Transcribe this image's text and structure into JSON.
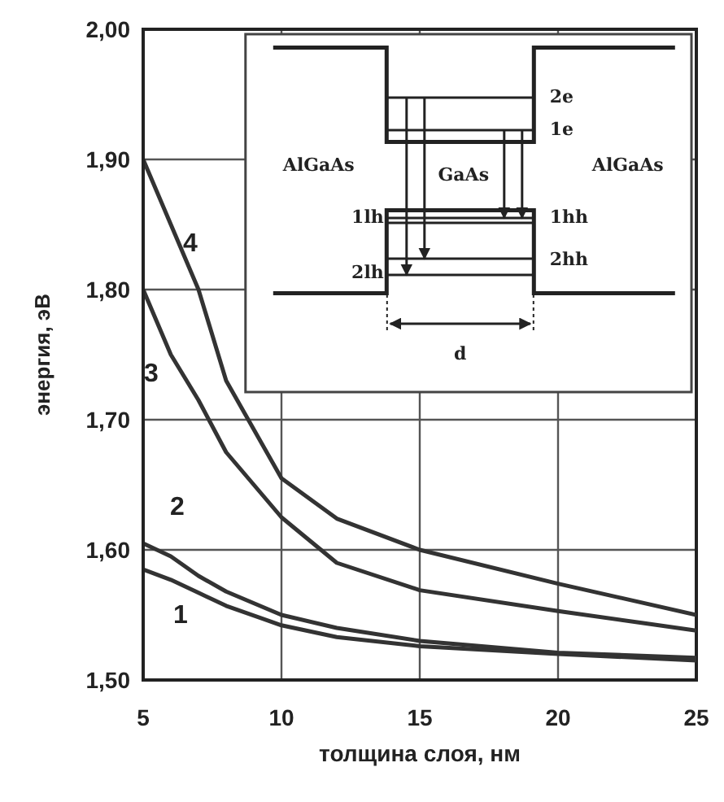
{
  "chart_data": {
    "type": "line",
    "xlabel": "толщина слоя, нм",
    "ylabel": "энергия, эВ",
    "xlim": [
      5,
      25
    ],
    "xticks": [
      5,
      10,
      15,
      20,
      25
    ],
    "ylim": [
      1.5,
      2.0
    ],
    "yticks": [
      {
        "value": 1.5,
        "label": "1,50"
      },
      {
        "value": 1.6,
        "label": "1,60"
      },
      {
        "value": 1.7,
        "label": "1,70"
      },
      {
        "value": 1.8,
        "label": "1,80"
      },
      {
        "value": 1.9,
        "label": "1,90"
      },
      {
        "value": 2.0,
        "label": "2,00"
      }
    ],
    "grid": true,
    "marker": "none",
    "line_style": "solid",
    "x": [
      5,
      6,
      7,
      8,
      10,
      12,
      15,
      20,
      25
    ],
    "series": [
      {
        "name": "1",
        "color": "#333333",
        "values": [
          1.585,
          1.577,
          1.567,
          1.557,
          1.542,
          1.533,
          1.526,
          1.52,
          1.515
        ]
      },
      {
        "name": "2",
        "color": "#333333",
        "values": [
          1.605,
          1.595,
          1.58,
          1.568,
          1.55,
          1.54,
          1.53,
          1.521,
          1.517
        ]
      },
      {
        "name": "3",
        "color": "#333333",
        "values": [
          1.8,
          1.75,
          1.715,
          1.675,
          1.625,
          1.59,
          1.569,
          1.553,
          1.538
        ]
      },
      {
        "name": "4",
        "color": "#333333",
        "values": [
          1.9,
          1.85,
          1.8,
          1.73,
          1.655,
          1.624,
          1.6,
          1.574,
          1.55
        ]
      }
    ],
    "annotations": [
      "AlGaAs",
      "GaAs",
      "AlGaAs",
      "2e",
      "1e",
      "1hh",
      "2hh",
      "1lh",
      "2lh",
      "d"
    ]
  }
}
